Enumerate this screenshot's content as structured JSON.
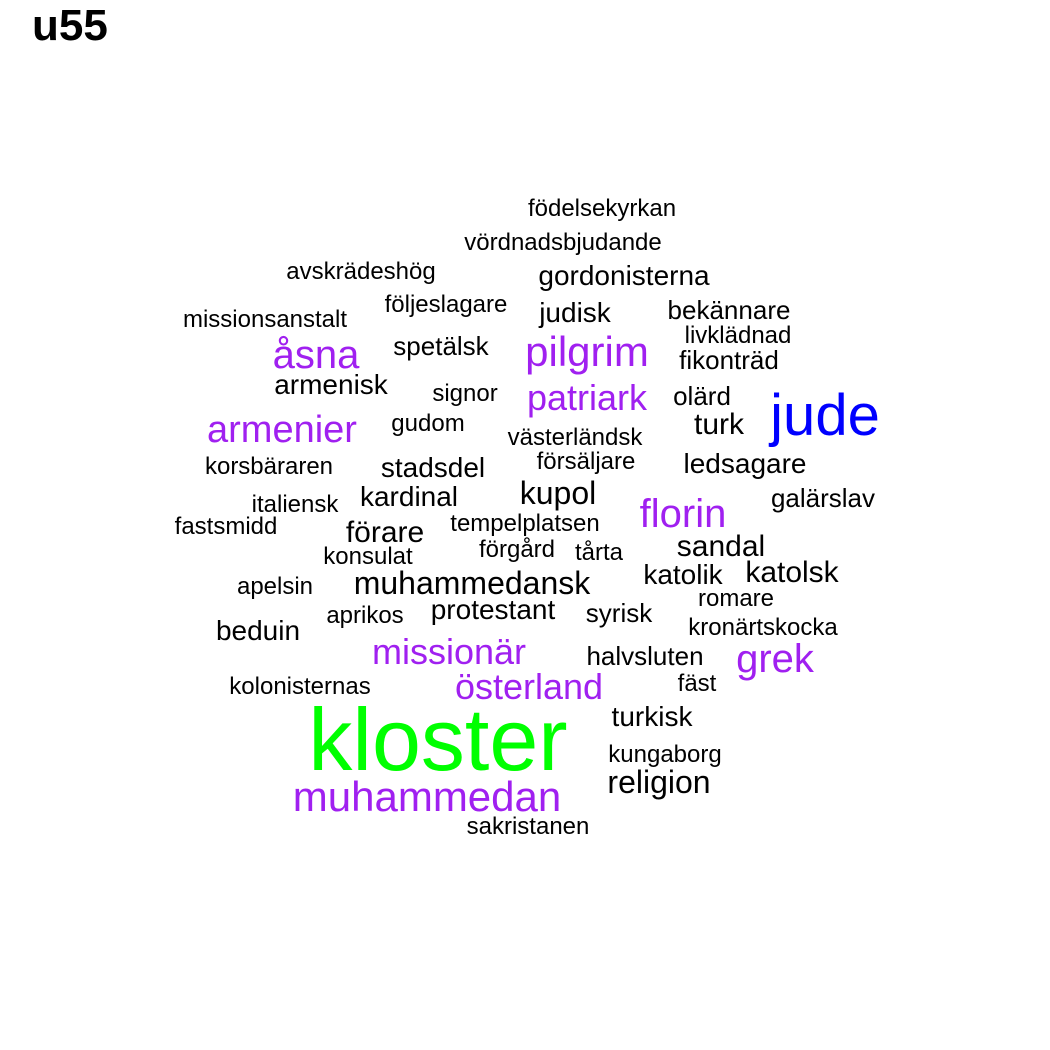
{
  "title": "u55",
  "colors": {
    "black": "#000000",
    "purple": "#a020f0",
    "blue": "#0000ff",
    "green": "#00ff00"
  },
  "words": [
    {
      "text": "kloster",
      "color": "green"
    },
    {
      "text": "jude",
      "color": "blue"
    },
    {
      "text": "muhammedan",
      "color": "purple"
    },
    {
      "text": "pilgrim",
      "color": "purple"
    },
    {
      "text": "åsna",
      "color": "purple"
    },
    {
      "text": "armenier",
      "color": "purple"
    },
    {
      "text": "patriark",
      "color": "purple"
    },
    {
      "text": "florin",
      "color": "purple"
    },
    {
      "text": "missionär",
      "color": "purple"
    },
    {
      "text": "österland",
      "color": "purple"
    },
    {
      "text": "grek",
      "color": "purple"
    },
    {
      "text": "födelsekyrkan",
      "color": "black"
    },
    {
      "text": "vördnadsbjudande",
      "color": "black"
    },
    {
      "text": "avskrädeshög",
      "color": "black"
    },
    {
      "text": "gordonisterna",
      "color": "black"
    },
    {
      "text": "följeslagare",
      "color": "black"
    },
    {
      "text": "judisk",
      "color": "black"
    },
    {
      "text": "bekännare",
      "color": "black"
    },
    {
      "text": "missionsanstalt",
      "color": "black"
    },
    {
      "text": "livklädnad",
      "color": "black"
    },
    {
      "text": "spetälsk",
      "color": "black"
    },
    {
      "text": "fikonträd",
      "color": "black"
    },
    {
      "text": "armenisk",
      "color": "black"
    },
    {
      "text": "signor",
      "color": "black"
    },
    {
      "text": "olärd",
      "color": "black"
    },
    {
      "text": "gudom",
      "color": "black"
    },
    {
      "text": "turk",
      "color": "black"
    },
    {
      "text": "västerländsk",
      "color": "black"
    },
    {
      "text": "korsbäraren",
      "color": "black"
    },
    {
      "text": "stadsdel",
      "color": "black"
    },
    {
      "text": "försäljare",
      "color": "black"
    },
    {
      "text": "ledsagare",
      "color": "black"
    },
    {
      "text": "kupol",
      "color": "black"
    },
    {
      "text": "italiensk",
      "color": "black"
    },
    {
      "text": "kardinal",
      "color": "black"
    },
    {
      "text": "galärslav",
      "color": "black"
    },
    {
      "text": "fastsmidd",
      "color": "black"
    },
    {
      "text": "tempelplatsen",
      "color": "black"
    },
    {
      "text": "förare",
      "color": "black"
    },
    {
      "text": "sandal",
      "color": "black"
    },
    {
      "text": "konsulat",
      "color": "black"
    },
    {
      "text": "förgård",
      "color": "black"
    },
    {
      "text": "tårta",
      "color": "black"
    },
    {
      "text": "katolik",
      "color": "black"
    },
    {
      "text": "katolsk",
      "color": "black"
    },
    {
      "text": "apelsin",
      "color": "black"
    },
    {
      "text": "muhammedansk",
      "color": "black"
    },
    {
      "text": "romare",
      "color": "black"
    },
    {
      "text": "aprikos",
      "color": "black"
    },
    {
      "text": "protestant",
      "color": "black"
    },
    {
      "text": "syrisk",
      "color": "black"
    },
    {
      "text": "kronärtskocka",
      "color": "black"
    },
    {
      "text": "beduin",
      "color": "black"
    },
    {
      "text": "halvsluten",
      "color": "black"
    },
    {
      "text": "kolonisternas",
      "color": "black"
    },
    {
      "text": "fäst",
      "color": "black"
    },
    {
      "text": "turkisk",
      "color": "black"
    },
    {
      "text": "kungaborg",
      "color": "black"
    },
    {
      "text": "religion",
      "color": "black"
    },
    {
      "text": "sakristanen",
      "color": "black"
    }
  ]
}
